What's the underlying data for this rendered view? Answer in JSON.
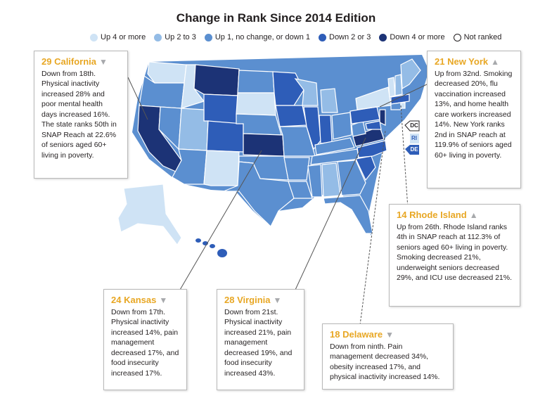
{
  "title": "Change in Rank Since 2014 Edition",
  "legend": [
    {
      "label": "Up 4 or more",
      "color": "#cfe3f5"
    },
    {
      "label": "Up 2 to 3",
      "color": "#94bce6"
    },
    {
      "label": "Up 1, no change, or down 1",
      "color": "#5b8fd0"
    },
    {
      "label": "Down 2 or 3",
      "color": "#2e5db8"
    },
    {
      "label": "Down 4 or more",
      "color": "#1c3376"
    },
    {
      "label": "Not ranked",
      "color": "#ffffff"
    }
  ],
  "dc_tags": {
    "dc": "DC",
    "ri": "RI",
    "de": "DE"
  },
  "callouts": {
    "california": {
      "rank_name": "29 California",
      "direction": "▼",
      "text": "Down from 18th. Physical inactivity increased 28% and poor mental health days increased 16%. The state ranks 50th in SNAP Reach at 22.6% of seniors aged 60+ living in poverty."
    },
    "new_york": {
      "rank_name": "21 New York",
      "direction": "▲",
      "text": "Up from 32nd. Smoking decreased 20%, flu vaccination increased 13%, and home health care workers increased 14%. New York ranks 2nd in SNAP reach at 119.9% of seniors aged 60+ living in poverty."
    },
    "rhode_island": {
      "rank_name": "14 Rhode Island",
      "direction": "▲",
      "text": "Up from 26th. Rhode Island ranks 4th in SNAP reach at 112.3% of seniors aged 60+ living in poverty. Smoking decreased 21%, underweight seniors decreased 29%, and ICU use decreased 21%."
    },
    "kansas": {
      "rank_name": "24 Kansas",
      "direction": "▼",
      "text": "Down from 17th. Physical inactivity increased 14%, pain management decreased 17%, and food insecurity increased 17%."
    },
    "virginia": {
      "rank_name": "28 Virginia",
      "direction": "▼",
      "text": "Down from 21st. Physical inactivity increased 21%, pain management decreased 19%, and food insecurity increased 43%."
    },
    "delaware": {
      "rank_name": "18 Delaware",
      "direction": "▼",
      "text": "Down from ninth. Pain management decreased 34%, obesity increased 17%, and physical inactivity increased 14%."
    }
  }
}
